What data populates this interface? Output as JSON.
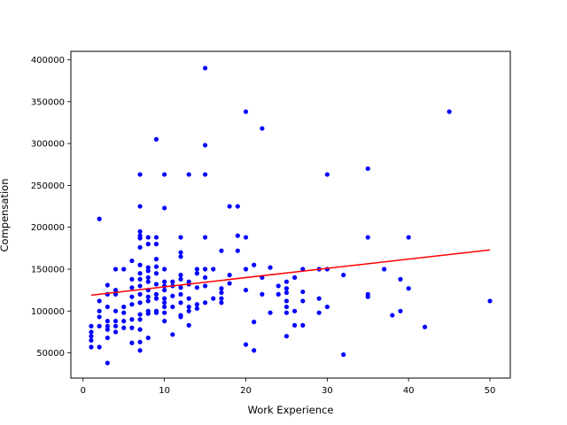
{
  "chart_data": {
    "type": "scatter",
    "title": "",
    "xlabel": "Work Experience",
    "ylabel": "Compensation",
    "xlim": [
      -1.5,
      52.5
    ],
    "ylim": [
      20000,
      410000
    ],
    "xticks": [
      0,
      10,
      20,
      30,
      40,
      50
    ],
    "yticks": [
      50000,
      100000,
      150000,
      200000,
      250000,
      300000,
      350000,
      400000
    ],
    "grid": false,
    "marker_color": "#0000ff",
    "line_color": "#ff0000",
    "points": [
      [
        1,
        82000
      ],
      [
        1,
        75000
      ],
      [
        1,
        70000
      ],
      [
        1,
        65000
      ],
      [
        1,
        57000
      ],
      [
        2,
        210000
      ],
      [
        2,
        112000
      ],
      [
        2,
        100000
      ],
      [
        2,
        93000
      ],
      [
        2,
        82000
      ],
      [
        2,
        57000
      ],
      [
        3,
        131000
      ],
      [
        3,
        120000
      ],
      [
        3,
        105000
      ],
      [
        3,
        88000
      ],
      [
        3,
        82000
      ],
      [
        3,
        78000
      ],
      [
        3,
        68000
      ],
      [
        3,
        38000
      ],
      [
        4,
        150000
      ],
      [
        4,
        125000
      ],
      [
        4,
        120000
      ],
      [
        4,
        100000
      ],
      [
        4,
        88000
      ],
      [
        4,
        82000
      ],
      [
        4,
        75000
      ],
      [
        5,
        150000
      ],
      [
        5,
        105000
      ],
      [
        5,
        98000
      ],
      [
        5,
        88000
      ],
      [
        5,
        80000
      ],
      [
        6,
        160000
      ],
      [
        6,
        138000
      ],
      [
        6,
        128000
      ],
      [
        6,
        117000
      ],
      [
        6,
        108000
      ],
      [
        6,
        90000
      ],
      [
        6,
        80000
      ],
      [
        6,
        62000
      ],
      [
        7,
        263000
      ],
      [
        7,
        225000
      ],
      [
        7,
        195000
      ],
      [
        7,
        190000
      ],
      [
        7,
        187000
      ],
      [
        7,
        176000
      ],
      [
        7,
        155000
      ],
      [
        7,
        145000
      ],
      [
        7,
        138000
      ],
      [
        7,
        130000
      ],
      [
        7,
        120000
      ],
      [
        7,
        110000
      ],
      [
        7,
        96000
      ],
      [
        7,
        90000
      ],
      [
        7,
        78000
      ],
      [
        7,
        63000
      ],
      [
        7,
        53000
      ],
      [
        8,
        188000
      ],
      [
        8,
        180000
      ],
      [
        8,
        152000
      ],
      [
        8,
        148000
      ],
      [
        8,
        140000
      ],
      [
        8,
        135000
      ],
      [
        8,
        125000
      ],
      [
        8,
        117000
      ],
      [
        8,
        112000
      ],
      [
        8,
        100000
      ],
      [
        8,
        97000
      ],
      [
        8,
        68000
      ],
      [
        9,
        305000
      ],
      [
        9,
        188000
      ],
      [
        9,
        180000
      ],
      [
        9,
        162000
      ],
      [
        9,
        153000
      ],
      [
        9,
        145000
      ],
      [
        9,
        132000
      ],
      [
        9,
        120000
      ],
      [
        9,
        115000
      ],
      [
        9,
        100000
      ],
      [
        9,
        98000
      ],
      [
        10,
        263000
      ],
      [
        10,
        223000
      ],
      [
        10,
        150000
      ],
      [
        10,
        135000
      ],
      [
        10,
        130000
      ],
      [
        10,
        125000
      ],
      [
        10,
        115000
      ],
      [
        10,
        110000
      ],
      [
        10,
        105000
      ],
      [
        10,
        98000
      ],
      [
        10,
        88000
      ],
      [
        11,
        135000
      ],
      [
        11,
        130000
      ],
      [
        11,
        118000
      ],
      [
        11,
        105000
      ],
      [
        11,
        72000
      ],
      [
        12,
        188000
      ],
      [
        12,
        170000
      ],
      [
        12,
        165000
      ],
      [
        12,
        143000
      ],
      [
        12,
        138000
      ],
      [
        12,
        128000
      ],
      [
        12,
        120000
      ],
      [
        12,
        110000
      ],
      [
        12,
        95000
      ],
      [
        12,
        93000
      ],
      [
        13,
        263000
      ],
      [
        13,
        135000
      ],
      [
        13,
        132000
      ],
      [
        13,
        115000
      ],
      [
        13,
        105000
      ],
      [
        13,
        100000
      ],
      [
        13,
        83000
      ],
      [
        14,
        150000
      ],
      [
        14,
        145000
      ],
      [
        14,
        128000
      ],
      [
        14,
        108000
      ],
      [
        14,
        103000
      ],
      [
        15,
        390000
      ],
      [
        15,
        298000
      ],
      [
        15,
        263000
      ],
      [
        15,
        188000
      ],
      [
        15,
        150000
      ],
      [
        15,
        140000
      ],
      [
        15,
        130000
      ],
      [
        15,
        110000
      ],
      [
        16,
        150000
      ],
      [
        16,
        115000
      ],
      [
        17,
        172000
      ],
      [
        17,
        127000
      ],
      [
        17,
        122000
      ],
      [
        17,
        115000
      ],
      [
        17,
        110000
      ],
      [
        18,
        225000
      ],
      [
        18,
        143000
      ],
      [
        18,
        133000
      ],
      [
        19,
        225000
      ],
      [
        19,
        190000
      ],
      [
        19,
        172000
      ],
      [
        20,
        338000
      ],
      [
        20,
        188000
      ],
      [
        20,
        150000
      ],
      [
        20,
        125000
      ],
      [
        20,
        60000
      ],
      [
        21,
        155000
      ],
      [
        21,
        87000
      ],
      [
        21,
        53000
      ],
      [
        22,
        318000
      ],
      [
        22,
        140000
      ],
      [
        22,
        120000
      ],
      [
        23,
        152000
      ],
      [
        23,
        98000
      ],
      [
        24,
        130000
      ],
      [
        24,
        120000
      ],
      [
        25,
        135000
      ],
      [
        25,
        127000
      ],
      [
        25,
        122000
      ],
      [
        25,
        112000
      ],
      [
        25,
        105000
      ],
      [
        25,
        98000
      ],
      [
        25,
        70000
      ],
      [
        26,
        140000
      ],
      [
        26,
        100000
      ],
      [
        26,
        83000
      ],
      [
        27,
        150000
      ],
      [
        27,
        123000
      ],
      [
        27,
        112000
      ],
      [
        27,
        83000
      ],
      [
        29,
        150000
      ],
      [
        29,
        115000
      ],
      [
        29,
        98000
      ],
      [
        30,
        263000
      ],
      [
        30,
        150000
      ],
      [
        30,
        105000
      ],
      [
        32,
        143000
      ],
      [
        32,
        48000
      ],
      [
        35,
        270000
      ],
      [
        35,
        188000
      ],
      [
        35,
        120000
      ],
      [
        35,
        117000
      ],
      [
        37,
        150000
      ],
      [
        38,
        95000
      ],
      [
        39,
        138000
      ],
      [
        39,
        100000
      ],
      [
        40,
        188000
      ],
      [
        40,
        127000
      ],
      [
        42,
        81000
      ],
      [
        45,
        338000
      ],
      [
        50,
        112000
      ]
    ],
    "fit_line": {
      "x": [
        1,
        50
      ],
      "y": [
        119000,
        173000
      ]
    }
  }
}
